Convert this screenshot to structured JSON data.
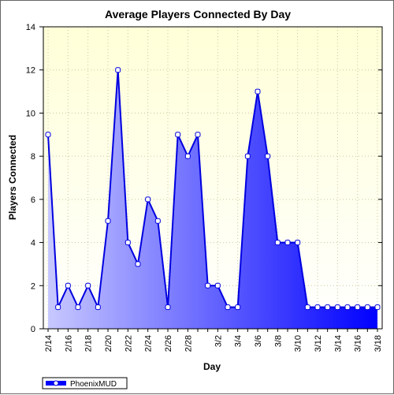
{
  "chart_data": {
    "type": "area",
    "title": "Average Players Connected By Day",
    "xlabel": "Day",
    "ylabel": "Players Connected",
    "ylim": [
      0,
      14
    ],
    "yticks": [
      0,
      2,
      4,
      6,
      8,
      10,
      12,
      14
    ],
    "grid": true,
    "legend_position": "bottom-left",
    "x": [
      "2/14",
      "2/15",
      "2/16",
      "2/17",
      "2/18",
      "2/19",
      "2/20",
      "2/21",
      "2/22",
      "2/23",
      "2/24",
      "2/25",
      "2/26",
      "2/27",
      "2/28",
      "2/29",
      "3/1",
      "3/2",
      "3/3",
      "3/4",
      "3/5",
      "3/6",
      "3/7",
      "3/8",
      "3/9",
      "3/10",
      "3/11",
      "3/12",
      "3/13",
      "3/14",
      "3/15",
      "3/16",
      "3/17",
      "3/18"
    ],
    "xtick_labels": [
      "2/14",
      "2/16",
      "2/18",
      "2/20",
      "2/22",
      "2/24",
      "2/26",
      "2/28",
      "3/2",
      "3/4",
      "3/6",
      "3/8",
      "3/10",
      "3/12",
      "3/14",
      "3/16",
      "3/18"
    ],
    "series": [
      {
        "name": "PhoenixMUD",
        "values": [
          9,
          1,
          2,
          1,
          2,
          1,
          5,
          12,
          4,
          3,
          6,
          5,
          1,
          9,
          8,
          9,
          2,
          2,
          1,
          1,
          8,
          11,
          8,
          4,
          4,
          4,
          1,
          1,
          1,
          1,
          1,
          1,
          1,
          1
        ],
        "line_color": "#0000e0",
        "fill_top_color": "#c8c8ff",
        "fill_bottom_color": "#0000ff"
      }
    ],
    "background_top_color": "#ffffd8",
    "background_bottom_color": "#ffffff"
  }
}
